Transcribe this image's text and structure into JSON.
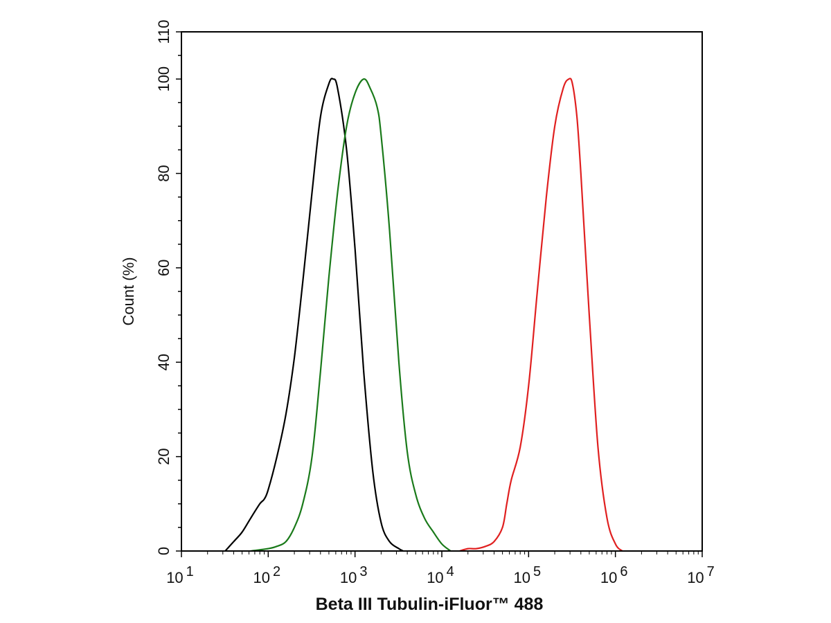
{
  "chart_data": {
    "type": "line",
    "title": "",
    "xlabel": "Beta III Tubulin-iFluor™ 488",
    "ylabel": "Count  (%)",
    "x_scale": "log",
    "xlim": [
      10,
      10000000
    ],
    "ylim": [
      0,
      110
    ],
    "y_ticks": [
      "0",
      "20",
      "40",
      "60",
      "80",
      "100",
      "110"
    ],
    "x_ticks": [
      {
        "base": "10",
        "exp": "1"
      },
      {
        "base": "10",
        "exp": "2"
      },
      {
        "base": "10",
        "exp": "3"
      },
      {
        "base": "10",
        "exp": "4"
      },
      {
        "base": "10",
        "exp": "5"
      },
      {
        "base": "10",
        "exp": "6"
      },
      {
        "base": "10",
        "exp": "7"
      }
    ],
    "grid": false,
    "legend": "none",
    "series": [
      {
        "color": "#000000",
        "x": [
          32,
          40,
          50,
          63,
          80,
          90,
          100,
          126,
          160,
          200,
          250,
          320,
          400,
          500,
          560,
          630,
          800,
          1000,
          1260,
          1600,
          2000,
          2500,
          3200,
          3600
        ],
        "y": [
          0,
          2,
          4,
          7,
          10,
          11,
          13,
          20,
          29,
          41,
          57,
          76,
          92,
          99,
          100,
          98,
          85,
          64,
          38,
          17,
          6,
          2,
          0.5,
          0
        ]
      },
      {
        "color": "#1a7a1a",
        "x": [
          63,
          100,
          126,
          160,
          200,
          250,
          320,
          400,
          500,
          630,
          800,
          1000,
          1260,
          1500,
          1800,
          2000,
          2500,
          3200,
          4000,
          5000,
          6300,
          8000,
          10000,
          12600
        ],
        "y": [
          0,
          0.5,
          1,
          2,
          5,
          10,
          20,
          38,
          58,
          76,
          90,
          97,
          100,
          98,
          94,
          88,
          68,
          40,
          21,
          12,
          7,
          4,
          1.5,
          0
        ]
      },
      {
        "color": "#e02020",
        "x": [
          16000,
          20000,
          25000,
          32000,
          40000,
          50000,
          56000,
          63000,
          80000,
          100000,
          126000,
          160000,
          200000,
          250000,
          290000,
          320000,
          360000,
          400000,
          500000,
          630000,
          800000,
          1000000,
          1200000
        ],
        "y": [
          0,
          0.5,
          0.5,
          1,
          2,
          5,
          10,
          15,
          22,
          35,
          55,
          75,
          90,
          98,
          100,
          99,
          92,
          80,
          50,
          22,
          7,
          1.5,
          0
        ]
      }
    ]
  }
}
